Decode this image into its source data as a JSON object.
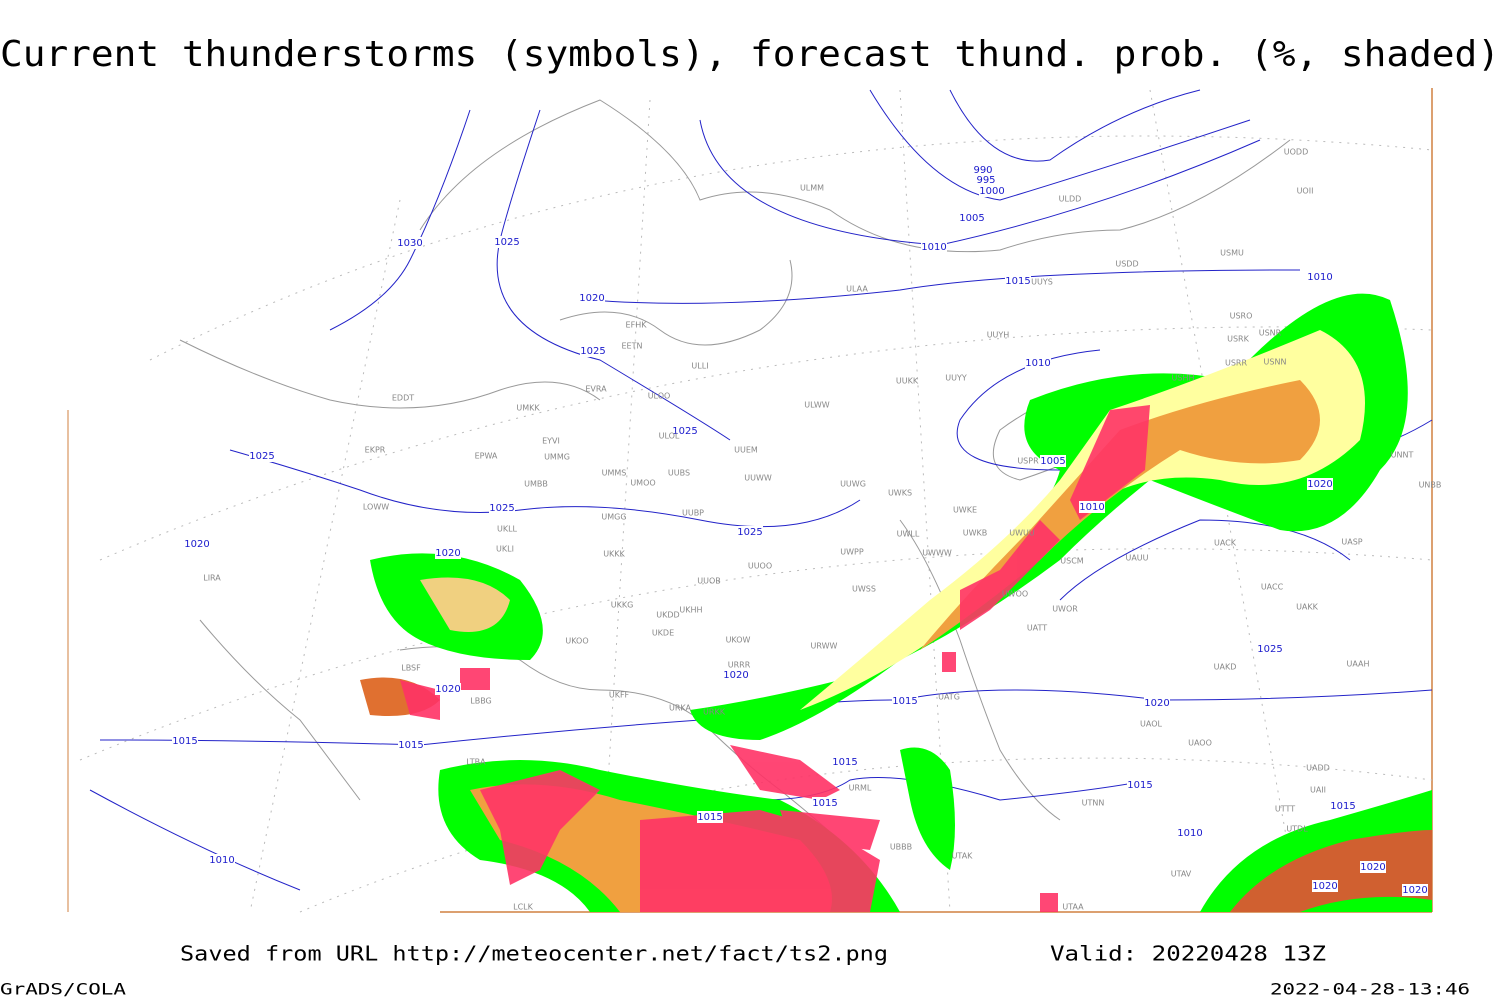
{
  "title": "Current thunderstorms (symbols), forecast thund. prob. (%, shaded)",
  "map": {
    "isobars": [
      990,
      995,
      1000,
      1005,
      1010,
      1015,
      1010,
      1030,
      1025,
      1020,
      1025,
      1025,
      1025,
      1025,
      1020,
      1025,
      1020,
      1010,
      1005,
      1010,
      1020,
      1020,
      1020,
      1015,
      1015,
      1015,
      1020,
      1025,
      1015,
      1015,
      1015,
      1015,
      1010,
      1010,
      1015,
      1020,
      1020,
      1020
    ],
    "stations": [
      "ULMM",
      "ULDD",
      "UODD",
      "UOII",
      "USMU",
      "USDD",
      "ULAA",
      "UUYS",
      "EFHK",
      "EETN",
      "ULLI",
      "UUYH",
      "USRO",
      "USRK",
      "USNR",
      "USRR",
      "USNN",
      "EVRA",
      "ULOO",
      "UUKK",
      "UUYY",
      "USHH",
      "EDDT",
      "UMKK",
      "ULWW",
      "ULOL",
      "EYVI",
      "UUEM",
      "EKPR",
      "EPWA",
      "UMMG",
      "USPR",
      "UMMS",
      "UMOO",
      "UUBS",
      "UUWW",
      "UUWG",
      "UMBB",
      "UWKS",
      "UWKE",
      "LOWW",
      "UKLL",
      "UUBP",
      "UMGG",
      "UWLL",
      "UWKB",
      "UWUU",
      "UKLI",
      "UKKK",
      "UWPP",
      "UWWW",
      "UAUU",
      "UACK",
      "UASP",
      "UWSS",
      "UUOB",
      "UUOO",
      "USCM",
      "UWOO",
      "UAKK",
      "UACC",
      "LIRA",
      "UKKG",
      "UKDD",
      "UKHH",
      "UWOR",
      "UKDE",
      "UKOW",
      "URWW",
      "UATT",
      "UKOO",
      "URRR",
      "UAKD",
      "UAAH",
      "LBSF",
      "UKFF",
      "UATG",
      "URKA",
      "URKK",
      "LBBG",
      "UAOL",
      "UAOO",
      "LTBA",
      "UADD",
      "URML",
      "UAII",
      "UTTT",
      "UTNN",
      "UBBB",
      "UTAK",
      "UTDL",
      "UTAV",
      "UTAA",
      "LCLK",
      "UNNT",
      "UNBB"
    ]
  },
  "footer": {
    "saved": "Saved from URL http://meteocenter.net/fact/ts2.png",
    "valid": "Valid: 20220428 13Z",
    "software": "GrADS/COLA",
    "timestamp": "2022-04-28-13:46"
  }
}
